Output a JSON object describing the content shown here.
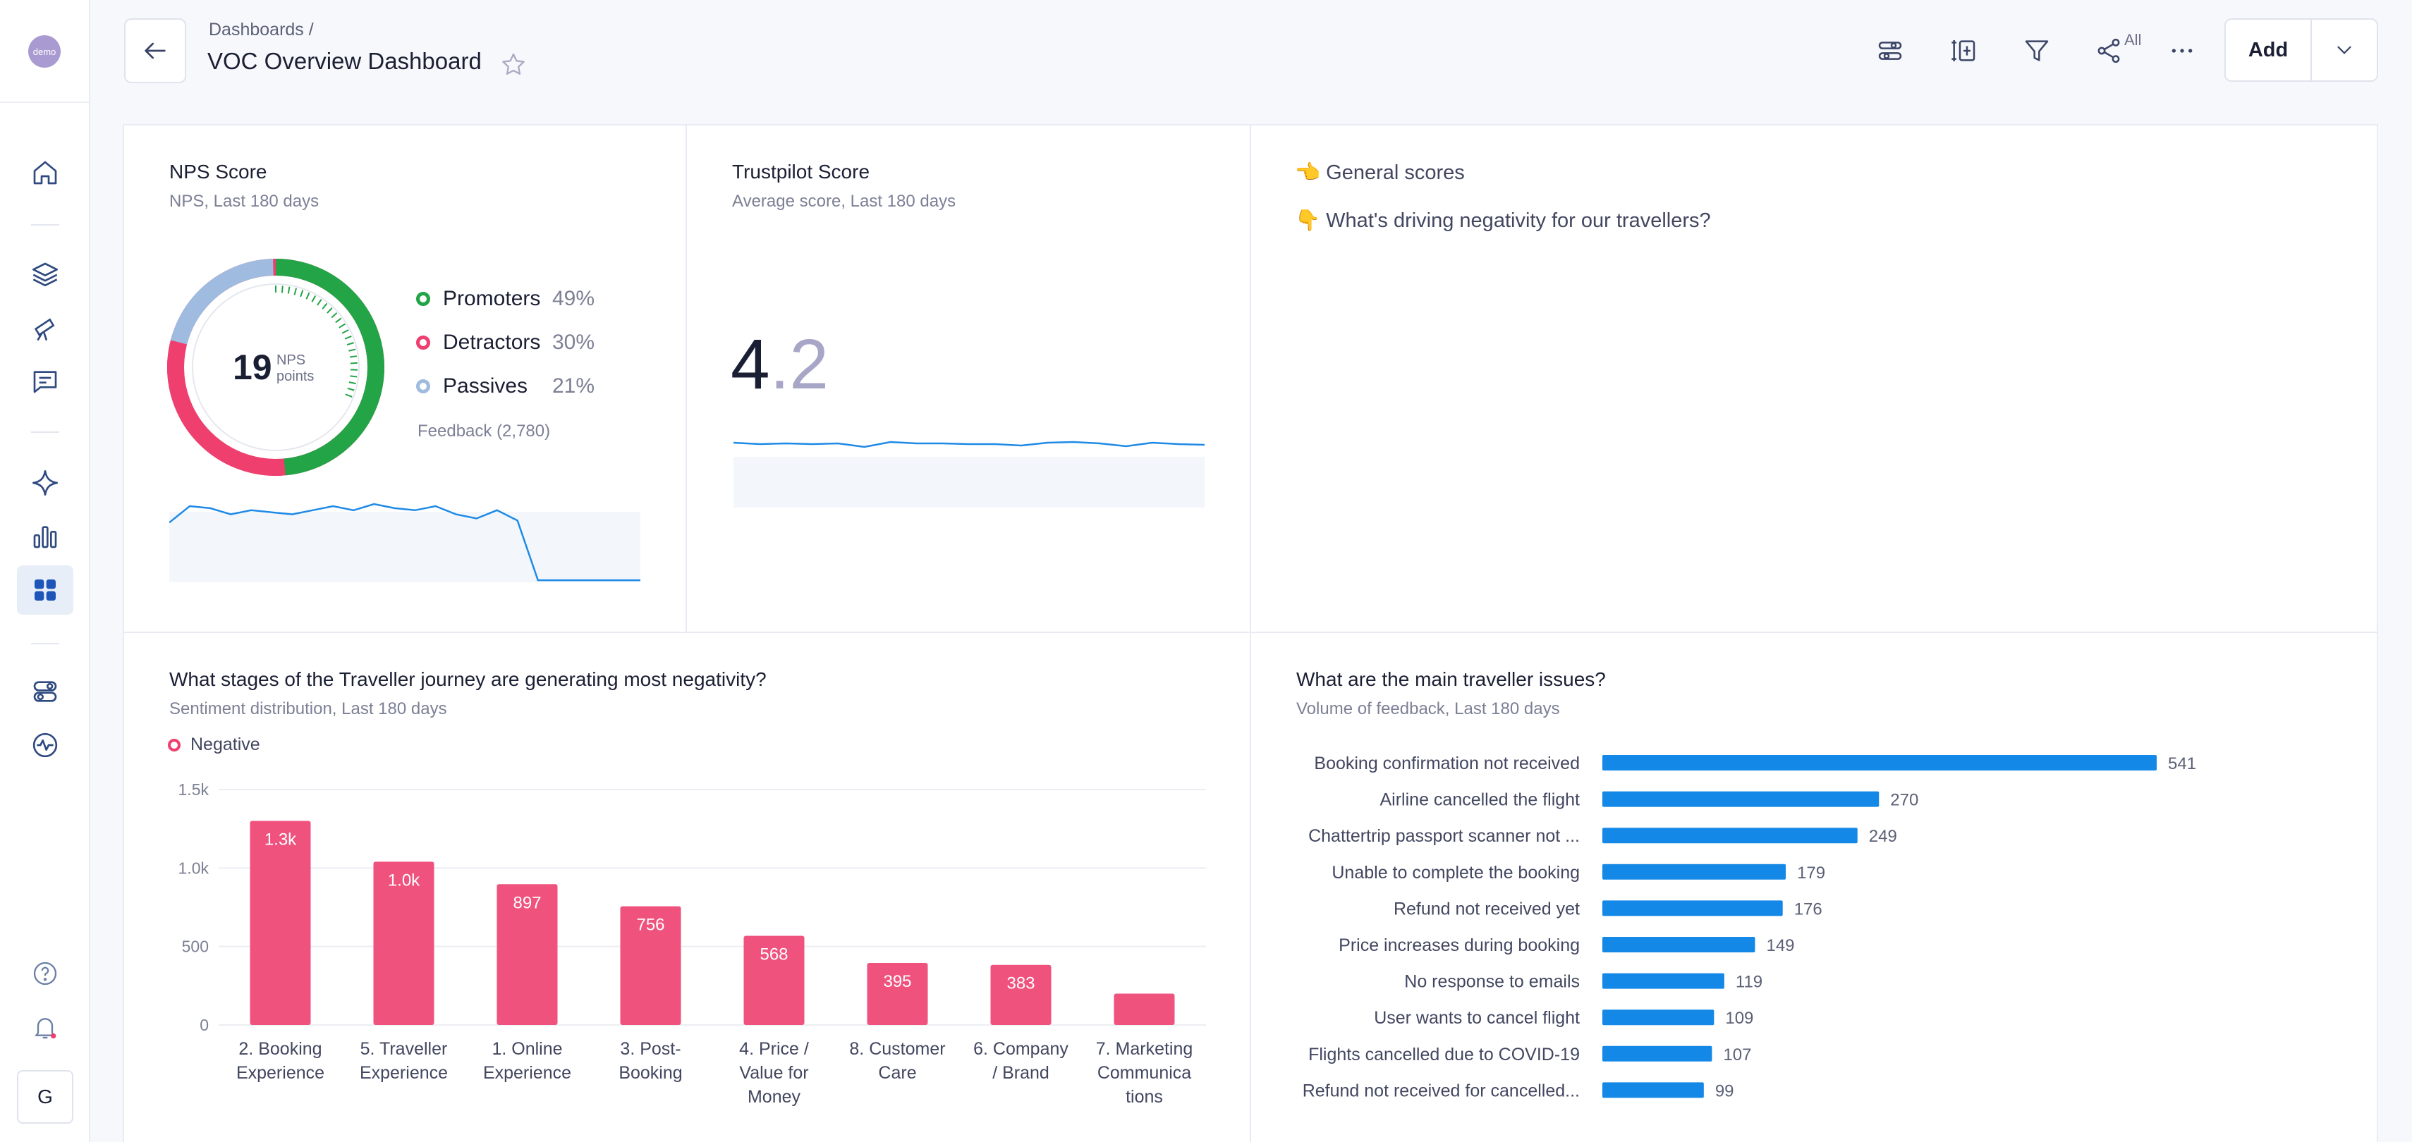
{
  "sidebar": {
    "logo": "demo",
    "user_initial": "G"
  },
  "header": {
    "breadcrumb": "Dashboards  /",
    "title": "VOC Overview Dashboard",
    "share_label": "All",
    "add_label": "Add"
  },
  "nps": {
    "title": "NPS Score",
    "subtitle": "NPS, Last 180 days",
    "value": "19",
    "unit_line1": "NPS",
    "unit_line2": "points",
    "legend": [
      {
        "label": "Promoters",
        "pct": "49%",
        "color": "#22a447"
      },
      {
        "label": "Detractors",
        "pct": "30%",
        "color": "#ee3f6e"
      },
      {
        "label": "Passives",
        "pct": "21%",
        "color": "#9fbbe0"
      }
    ],
    "feedback": "Feedback (2,780)",
    "trend": [
      0.58,
      0.74,
      0.72,
      0.66,
      0.7,
      0.68,
      0.66,
      0.7,
      0.74,
      0.7,
      0.76,
      0.72,
      0.7,
      0.74,
      0.66,
      0.62,
      0.7,
      0.6,
      0.02,
      0.02,
      0.02,
      0.02,
      0.02,
      0.02
    ]
  },
  "trustpilot": {
    "title": "Trustpilot Score",
    "subtitle": "Average score, Last 180 days",
    "score_int": "4",
    "score_dec": ".2",
    "trend": [
      0.92,
      0.9,
      0.91,
      0.9,
      0.91,
      0.86,
      0.93,
      0.91,
      0.91,
      0.9,
      0.9,
      0.88,
      0.92,
      0.93,
      0.91,
      0.87,
      0.92,
      0.9,
      0.89
    ]
  },
  "general": {
    "line1": "👈 General scores",
    "line2": "👇 What's driving negativity for our travellers?"
  },
  "chart_data": [
    {
      "type": "bar",
      "title": "What stages of the Traveller journey are generating most negativity?",
      "subtitle": "Sentiment distribution, Last 180 days",
      "legend": [
        "Negative"
      ],
      "categories": [
        "2. Booking Experience",
        "5. Traveller Experience",
        "1. Online Experience",
        "3. Post-Booking",
        "4. Price / Value for Money",
        "8. Customer Care",
        "6. Company / Brand",
        "7. Marketing Communica tions"
      ],
      "category_lines": [
        [
          "2. Booking",
          "Experience"
        ],
        [
          "5. Traveller",
          "Experience"
        ],
        [
          "1. Online",
          "Experience"
        ],
        [
          "3. Post-",
          "Booking"
        ],
        [
          "4. Price /",
          "Value for",
          "Money"
        ],
        [
          "8. Customer",
          "Care"
        ],
        [
          "6. Company",
          "/ Brand"
        ],
        [
          "7. Marketing",
          "Communica",
          "tions"
        ]
      ],
      "values": [
        1300,
        1040,
        897,
        756,
        568,
        395,
        383,
        200
      ],
      "data_labels": [
        "1.3k",
        "1.0k",
        "897",
        "756",
        "568",
        "395",
        "383",
        ""
      ],
      "ylim": [
        0,
        1500
      ],
      "yticks": [
        "0",
        "500",
        "1.0k",
        "1.5k"
      ],
      "color": "#f0527e"
    },
    {
      "type": "bar",
      "orientation": "horizontal",
      "title": "What are the main traveller issues?",
      "subtitle": "Volume of feedback, Last 180 days",
      "categories": [
        "Booking confirmation not received",
        "Airline cancelled the flight",
        "Chattertrip passport scanner not ...",
        "Unable to complete the booking",
        "Refund not received yet",
        "Price increases during booking",
        "No response to emails",
        "User wants to cancel flight",
        "Flights cancelled due to COVID-19",
        "Refund not received for cancelled..."
      ],
      "values": [
        541,
        270,
        249,
        179,
        176,
        149,
        119,
        109,
        107,
        99
      ],
      "color": "#1488e6"
    }
  ]
}
